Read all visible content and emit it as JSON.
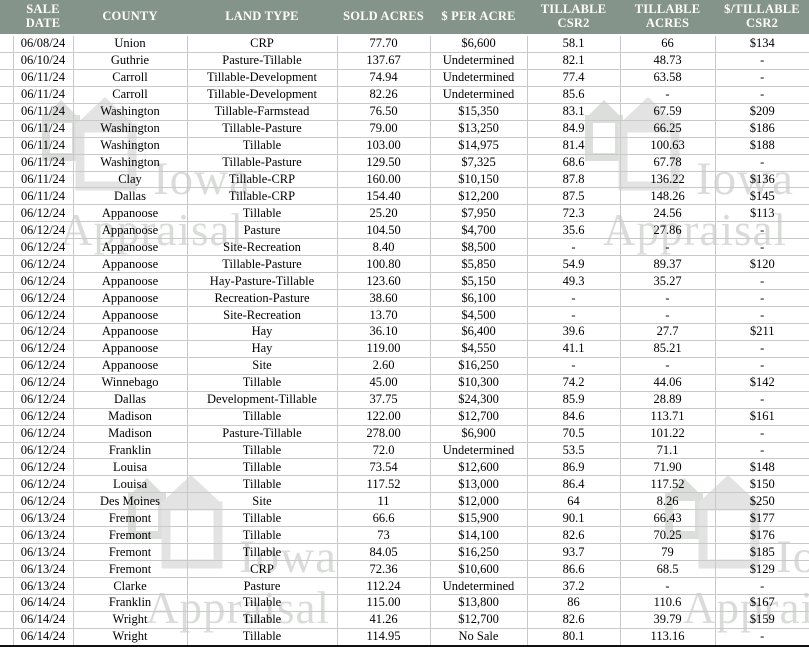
{
  "colors": {
    "header_bg": "#85948A",
    "header_text": "#FDFDF6",
    "grid": "#C9C9C9",
    "watermark": "#C3C6C3"
  },
  "watermark": {
    "line1": "Iowa",
    "line2": "Appraisal",
    "icon": "buildings-logo-icon"
  },
  "table": {
    "columns": [
      "SALE DATE",
      "COUNTY",
      "LAND TYPE",
      "SOLD ACRES",
      "$ PER ACRE",
      "TILLABLE CSR2",
      "TILLABLE ACRES",
      "$/TILLABLE CSR2"
    ],
    "rows": [
      [
        "06/08/24",
        "Union",
        "CRP",
        "77.70",
        "$6,600",
        "58.1",
        "66",
        "$134"
      ],
      [
        "06/10/24",
        "Guthrie",
        "Pasture-Tillable",
        "137.67",
        "Undetermined",
        "82.1",
        "48.73",
        "-"
      ],
      [
        "06/11/24",
        "Carroll",
        "Tillable-Development",
        "74.94",
        "Undetermined",
        "77.4",
        "63.58",
        "-"
      ],
      [
        "06/11/24",
        "Carroll",
        "Tillable-Development",
        "82.26",
        "Undetermined",
        "85.6",
        "-",
        "-"
      ],
      [
        "06/11/24",
        "Washington",
        "Tillable-Farmstead",
        "76.50",
        "$15,350",
        "83.1",
        "67.59",
        "$209"
      ],
      [
        "06/11/24",
        "Washington",
        "Tillable-Pasture",
        "79.00",
        "$13,250",
        "84.9",
        "66.25",
        "$186"
      ],
      [
        "06/11/24",
        "Washington",
        "Tillable",
        "103.00",
        "$14,975",
        "81.4",
        "100.63",
        "$188"
      ],
      [
        "06/11/24",
        "Washington",
        "Tillable-Pasture",
        "129.50",
        "$7,325",
        "68.6",
        "67.78",
        "-"
      ],
      [
        "06/11/24",
        "Clay",
        "Tillable-CRP",
        "160.00",
        "$10,150",
        "87.8",
        "136.22",
        "$136"
      ],
      [
        "06/11/24",
        "Dallas",
        "Tillable-CRP",
        "154.40",
        "$12,200",
        "87.5",
        "148.26",
        "$145"
      ],
      [
        "06/12/24",
        "Appanoose",
        "Tillable",
        "25.20",
        "$7,950",
        "72.3",
        "24.56",
        "$113"
      ],
      [
        "06/12/24",
        "Appanoose",
        "Pasture",
        "104.50",
        "$4,700",
        "35.6",
        "27.86",
        "-"
      ],
      [
        "06/12/24",
        "Appanoose",
        "Site-Recreation",
        "8.40",
        "$8,500",
        "-",
        "-",
        "-"
      ],
      [
        "06/12/24",
        "Appanoose",
        "Tillable-Pasture",
        "100.80",
        "$5,850",
        "54.9",
        "89.37",
        "$120"
      ],
      [
        "06/12/24",
        "Appanoose",
        "Hay-Pasture-Tillable",
        "123.60",
        "$5,150",
        "49.3",
        "35.27",
        "-"
      ],
      [
        "06/12/24",
        "Appanoose",
        "Recreation-Pasture",
        "38.60",
        "$6,100",
        "-",
        "-",
        "-"
      ],
      [
        "06/12/24",
        "Appanoose",
        "Site-Recreation",
        "13.70",
        "$4,500",
        "-",
        "-",
        "-"
      ],
      [
        "06/12/24",
        "Appanoose",
        "Hay",
        "36.10",
        "$6,400",
        "39.6",
        "27.7",
        "$211"
      ],
      [
        "06/12/24",
        "Appanoose",
        "Hay",
        "119.00",
        "$4,550",
        "41.1",
        "85.21",
        "-"
      ],
      [
        "06/12/24",
        "Appanoose",
        "Site",
        "2.60",
        "$16,250",
        "-",
        "-",
        "-"
      ],
      [
        "06/12/24",
        "Winnebago",
        "Tillable",
        "45.00",
        "$10,300",
        "74.2",
        "44.06",
        "$142"
      ],
      [
        "06/12/24",
        "Dallas",
        "Development-Tillable",
        "37.75",
        "$24,300",
        "85.9",
        "28.89",
        "-"
      ],
      [
        "06/12/24",
        "Madison",
        "Tillable",
        "122.00",
        "$12,700",
        "84.6",
        "113.71",
        "$161"
      ],
      [
        "06/12/24",
        "Madison",
        "Pasture-Tillable",
        "278.00",
        "$6,900",
        "70.5",
        "101.22",
        "-"
      ],
      [
        "06/12/24",
        "Franklin",
        "Tillable",
        "72.0",
        "Undetermined",
        "53.5",
        "71.1",
        "-"
      ],
      [
        "06/12/24",
        "Louisa",
        "Tillable",
        "73.54",
        "$12,600",
        "86.9",
        "71.90",
        "$148"
      ],
      [
        "06/12/24",
        "Louisa",
        "Tillable",
        "117.52",
        "$13,000",
        "86.4",
        "117.52",
        "$150"
      ],
      [
        "06/12/24",
        "Des Moines",
        "Site",
        "11",
        "$12,000",
        "64",
        "8.26",
        "$250"
      ],
      [
        "06/13/24",
        "Fremont",
        "Tillable",
        "66.6",
        "$15,900",
        "90.1",
        "66.43",
        "$177"
      ],
      [
        "06/13/24",
        "Fremont",
        "Tillable",
        "73",
        "$14,100",
        "82.6",
        "70.25",
        "$176"
      ],
      [
        "06/13/24",
        "Fremont",
        "Tillable",
        "84.05",
        "$16,250",
        "93.7",
        "79",
        "$185"
      ],
      [
        "06/13/24",
        "Fremont",
        "CRP",
        "72.36",
        "$10,600",
        "86.6",
        "68.5",
        "$129"
      ],
      [
        "06/13/24",
        "Clarke",
        "Pasture",
        "112.24",
        "Undetermined",
        "37.2",
        "-",
        "-"
      ],
      [
        "06/14/24",
        "Franklin",
        "Tillable",
        "115.00",
        "$13,800",
        "86",
        "110.6",
        "$167"
      ],
      [
        "06/14/24",
        "Wright",
        "Tillable",
        "41.26",
        "$12,700",
        "82.6",
        "39.79",
        "$159"
      ],
      [
        "06/14/24",
        "Wright",
        "Tillable",
        "114.95",
        "No Sale",
        "80.1",
        "113.16",
        "-"
      ]
    ]
  }
}
